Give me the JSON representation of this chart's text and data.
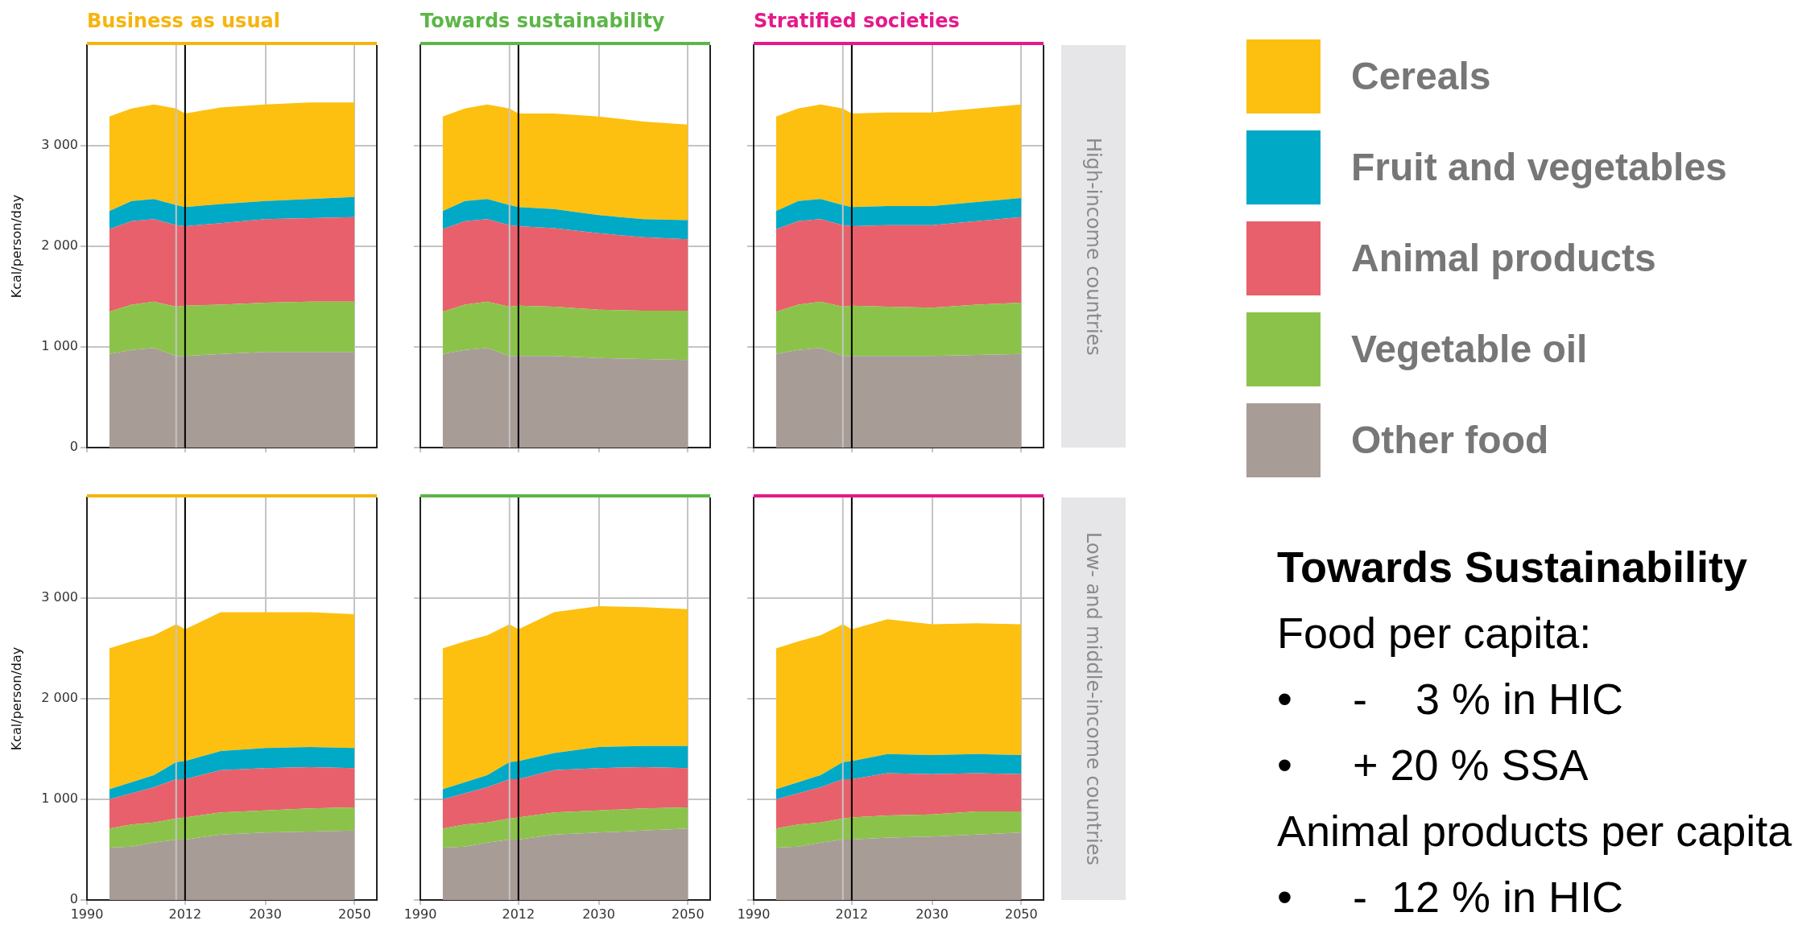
{
  "chart_data": [
    {
      "type": "area",
      "title": "Business as usual",
      "ylabel": "Kcal/person/day",
      "stacked": true,
      "x": [
        1995,
        2000,
        2005,
        2010,
        2012,
        2020,
        2030,
        2040,
        2050
      ],
      "xlim": [
        1990,
        2055
      ],
      "xticks": [
        1990,
        2012,
        2030,
        2050
      ],
      "ylim": [
        0,
        4000
      ],
      "yticks": [
        0,
        {
          "value": 1000,
          "label": "1 000"
        },
        {
          "value": 2000,
          "label": "2 000"
        },
        {
          "value": 3000,
          "label": "3 000"
        }
      ],
      "grid": true,
      "tick_labels": "y",
      "ref_lines": [
        {
          "axis": "x",
          "value": 2010,
          "color": "#c4c4c4"
        },
        {
          "axis": "x",
          "value": 2012,
          "color": "#000000"
        }
      ],
      "series": [
        {
          "color": "#a89c97",
          "values": [
            930,
            970,
            990,
            910,
            910,
            930,
            950,
            950,
            950
          ]
        },
        {
          "color": "#8bc34a",
          "values": [
            420,
            450,
            460,
            490,
            500,
            490,
            490,
            500,
            500
          ]
        },
        {
          "color": "#e8606b",
          "values": [
            820,
            830,
            820,
            810,
            790,
            810,
            830,
            830,
            840
          ]
        },
        {
          "color": "#00a9c6",
          "values": [
            180,
            200,
            200,
            200,
            190,
            190,
            180,
            190,
            200
          ]
        },
        {
          "color": "#fdc010",
          "values": [
            940,
            920,
            940,
            960,
            930,
            960,
            960,
            960,
            940
          ]
        }
      ]
    },
    {
      "type": "area",
      "title": "Towards sustainability",
      "stacked": true,
      "x": [
        1995,
        2000,
        2005,
        2010,
        2012,
        2020,
        2030,
        2040,
        2050
      ],
      "xlim": [
        1990,
        2055
      ],
      "xticks": [
        1990,
        2012,
        2030,
        2050
      ],
      "ylim": [
        0,
        4000
      ],
      "yticks": [
        0,
        1000,
        2000,
        3000
      ],
      "grid": true,
      "tick_labels": false,
      "ref_lines": [
        {
          "axis": "x",
          "value": 2010,
          "color": "#c4c4c4"
        },
        {
          "axis": "x",
          "value": 2012,
          "color": "#000000"
        }
      ],
      "series": [
        {
          "color": "#a89c97",
          "values": [
            930,
            970,
            990,
            910,
            910,
            910,
            890,
            880,
            870
          ]
        },
        {
          "color": "#8bc34a",
          "values": [
            420,
            450,
            460,
            490,
            500,
            490,
            480,
            480,
            490
          ]
        },
        {
          "color": "#e8606b",
          "values": [
            820,
            830,
            820,
            810,
            790,
            780,
            760,
            730,
            710
          ]
        },
        {
          "color": "#00a9c6",
          "values": [
            180,
            200,
            200,
            200,
            190,
            190,
            180,
            180,
            190
          ]
        },
        {
          "color": "#fdc010",
          "values": [
            940,
            920,
            940,
            960,
            930,
            950,
            980,
            970,
            950
          ]
        }
      ]
    },
    {
      "type": "area",
      "title": "Stratified societies",
      "y2label": "High-income countries",
      "stacked": true,
      "legend": "right",
      "x": [
        1995,
        2000,
        2005,
        2010,
        2012,
        2020,
        2030,
        2040,
        2050
      ],
      "xlim": [
        1990,
        2055
      ],
      "xticks": [
        1990,
        2012,
        2030,
        2050
      ],
      "ylim": [
        0,
        4000
      ],
      "yticks": [
        0,
        1000,
        2000,
        3000
      ],
      "grid": true,
      "tick_labels": false,
      "ref_lines": [
        {
          "axis": "x",
          "value": 2010,
          "color": "#c4c4c4"
        },
        {
          "axis": "x",
          "value": 2012,
          "color": "#000000"
        }
      ],
      "series": [
        {
          "name": "Other food",
          "color": "#a89c97",
          "values": [
            930,
            970,
            990,
            910,
            910,
            910,
            910,
            920,
            930
          ]
        },
        {
          "name": "Vegetable oil",
          "color": "#8bc34a",
          "values": [
            420,
            450,
            460,
            490,
            500,
            490,
            480,
            500,
            510
          ]
        },
        {
          "name": "Animal products",
          "color": "#e8606b",
          "values": [
            820,
            830,
            820,
            810,
            790,
            810,
            820,
            830,
            850
          ]
        },
        {
          "name": "Fruit and vegetables",
          "color": "#00a9c6",
          "values": [
            180,
            200,
            200,
            200,
            190,
            190,
            190,
            190,
            190
          ]
        },
        {
          "name": "Cereals",
          "color": "#fdc010",
          "values": [
            940,
            920,
            940,
            960,
            930,
            930,
            930,
            930,
            930
          ]
        }
      ]
    },
    {
      "type": "area",
      "ylabel": "Kcal/person/day",
      "stacked": true,
      "x": [
        1995,
        2000,
        2005,
        2010,
        2012,
        2020,
        2030,
        2040,
        2050
      ],
      "xlim": [
        1990,
        2055
      ],
      "xticks": [
        1990,
        2012,
        2030,
        2050
      ],
      "ylim": [
        0,
        4000
      ],
      "yticks": [
        0,
        {
          "value": 1000,
          "label": "1 000"
        },
        {
          "value": 2000,
          "label": "2 000"
        },
        {
          "value": 3000,
          "label": "3 000"
        }
      ],
      "grid": true,
      "ref_lines": [
        {
          "axis": "x",
          "value": 2010,
          "color": "#c4c4c4"
        },
        {
          "axis": "x",
          "value": 2012,
          "color": "#000000"
        }
      ],
      "series": [
        {
          "color": "#a89c97",
          "values": [
            520,
            530,
            570,
            600,
            600,
            650,
            670,
            680,
            690
          ]
        },
        {
          "color": "#8bc34a",
          "values": [
            190,
            220,
            200,
            210,
            220,
            220,
            220,
            230,
            230
          ]
        },
        {
          "color": "#e8606b",
          "values": [
            290,
            310,
            350,
            390,
            380,
            420,
            420,
            410,
            390
          ]
        },
        {
          "color": "#00a9c6",
          "values": [
            100,
            110,
            120,
            170,
            180,
            190,
            200,
            200,
            200
          ]
        },
        {
          "color": "#fdc010",
          "values": [
            1400,
            1400,
            1390,
            1370,
            1310,
            1380,
            1350,
            1340,
            1330
          ]
        }
      ]
    },
    {
      "type": "area",
      "stacked": true,
      "x": [
        1995,
        2000,
        2005,
        2010,
        2012,
        2020,
        2030,
        2040,
        2050
      ],
      "xlim": [
        1990,
        2055
      ],
      "xticks": [
        1990,
        2012,
        2030,
        2050
      ],
      "ylim": [
        0,
        4000
      ],
      "yticks": [
        0,
        1000,
        2000,
        3000
      ],
      "grid": true,
      "tick_labels": "x",
      "ref_lines": [
        {
          "axis": "x",
          "value": 2010,
          "color": "#c4c4c4"
        },
        {
          "axis": "x",
          "value": 2012,
          "color": "#000000"
        }
      ],
      "series": [
        {
          "color": "#a89c97",
          "values": [
            520,
            530,
            570,
            600,
            600,
            650,
            670,
            690,
            710
          ]
        },
        {
          "color": "#8bc34a",
          "values": [
            190,
            220,
            200,
            210,
            220,
            220,
            220,
            220,
            210
          ]
        },
        {
          "color": "#e8606b",
          "values": [
            290,
            310,
            350,
            390,
            380,
            420,
            420,
            410,
            390
          ]
        },
        {
          "color": "#00a9c6",
          "values": [
            100,
            110,
            120,
            170,
            180,
            170,
            210,
            210,
            220
          ]
        },
        {
          "color": "#fdc010",
          "values": [
            1400,
            1400,
            1390,
            1370,
            1310,
            1400,
            1400,
            1380,
            1360
          ]
        }
      ]
    },
    {
      "type": "area",
      "y2label": "Low- and middle-income countries",
      "stacked": true,
      "x": [
        1995,
        2000,
        2005,
        2010,
        2012,
        2020,
        2030,
        2040,
        2050
      ],
      "xlim": [
        1990,
        2055
      ],
      "xticks": [
        1990,
        2012,
        2030,
        2050
      ],
      "ylim": [
        0,
        4000
      ],
      "yticks": [
        0,
        1000,
        2000,
        3000
      ],
      "grid": true,
      "tick_labels": "x",
      "ref_lines": [
        {
          "axis": "x",
          "value": 2010,
          "color": "#c4c4c4"
        },
        {
          "axis": "x",
          "value": 2012,
          "color": "#000000"
        }
      ],
      "series": [
        {
          "color": "#a89c97",
          "values": [
            520,
            530,
            570,
            600,
            600,
            620,
            630,
            650,
            670
          ]
        },
        {
          "color": "#8bc34a",
          "values": [
            190,
            220,
            200,
            210,
            220,
            220,
            220,
            230,
            210
          ]
        },
        {
          "color": "#e8606b",
          "values": [
            290,
            310,
            350,
            390,
            380,
            420,
            400,
            380,
            370
          ]
        },
        {
          "color": "#00a9c6",
          "values": [
            100,
            110,
            120,
            170,
            180,
            190,
            190,
            190,
            190
          ]
        },
        {
          "color": "#fdc010",
          "values": [
            1400,
            1400,
            1390,
            1370,
            1310,
            1340,
            1300,
            1300,
            1300
          ]
        }
      ]
    },
    {
      "type": "other",
      "title": "Towards Sustainability",
      "annotations": [
        "Food per capita:",
        "•     -    3 % in HIC",
        "•     + 20 % SSA",
        "Animal products per capita",
        "•     -  12 % in HIC"
      ]
    }
  ]
}
